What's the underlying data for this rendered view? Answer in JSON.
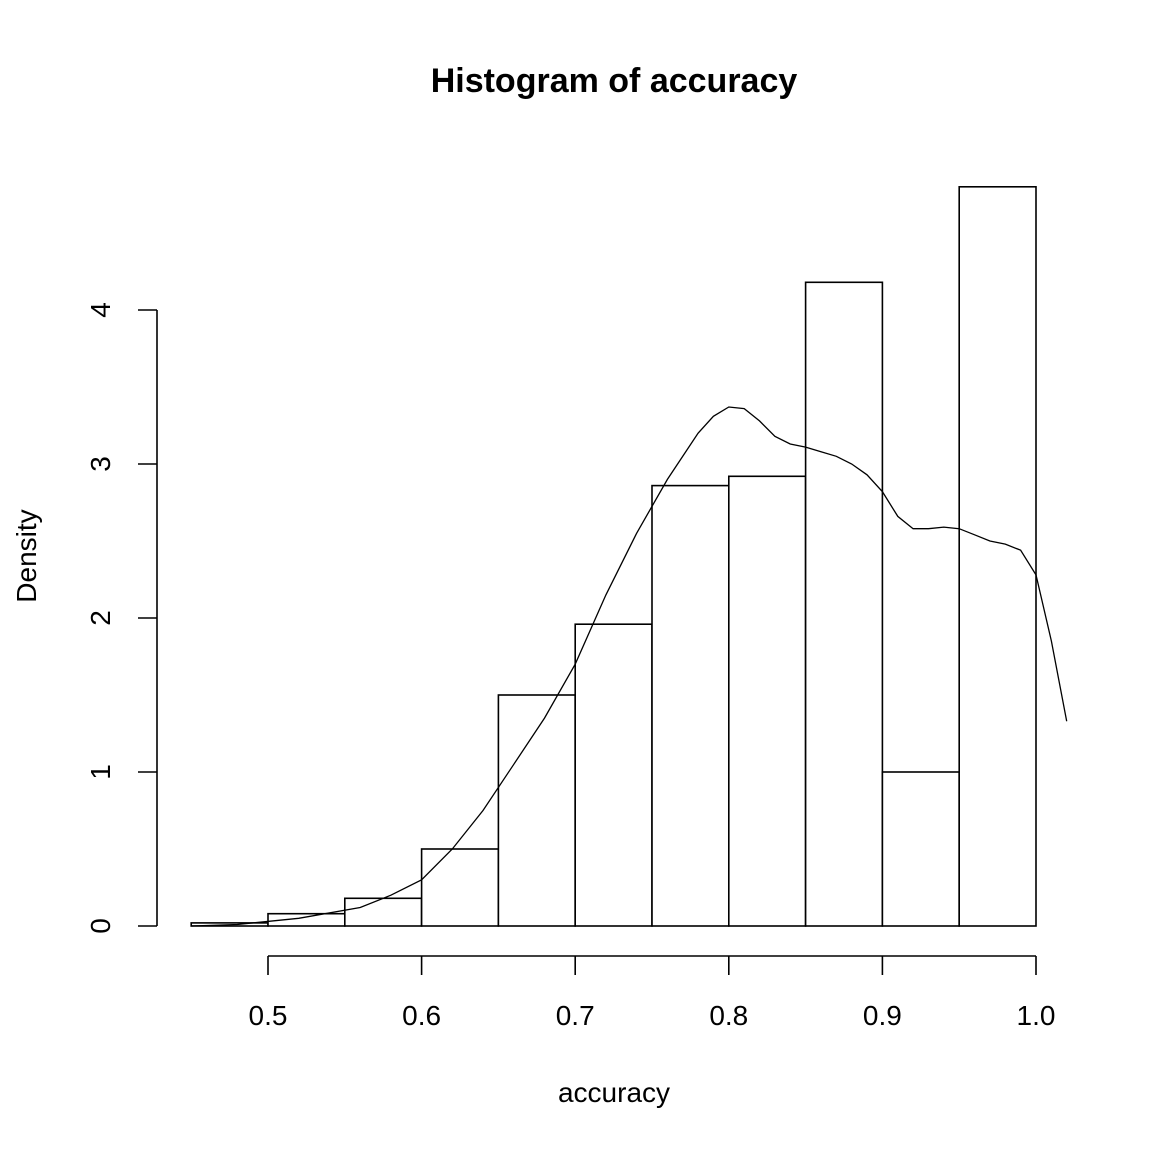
{
  "chart_data": {
    "type": "bar",
    "title": "Histogram of accuracy",
    "xlabel": "accuracy",
    "ylabel": "Density",
    "bins": [
      {
        "from": 0.45,
        "to": 0.5,
        "density": 0.02
      },
      {
        "from": 0.5,
        "to": 0.55,
        "density": 0.08
      },
      {
        "from": 0.55,
        "to": 0.6,
        "density": 0.18
      },
      {
        "from": 0.6,
        "to": 0.65,
        "density": 0.5
      },
      {
        "from": 0.65,
        "to": 0.7,
        "density": 1.5
      },
      {
        "from": 0.7,
        "to": 0.75,
        "density": 1.96
      },
      {
        "from": 0.75,
        "to": 0.8,
        "density": 2.86
      },
      {
        "from": 0.8,
        "to": 0.85,
        "density": 2.92
      },
      {
        "from": 0.85,
        "to": 0.9,
        "density": 4.18
      },
      {
        "from": 0.9,
        "to": 0.95,
        "density": 1.0
      },
      {
        "from": 0.95,
        "to": 1.0,
        "density": 4.8
      }
    ],
    "density_curve": {
      "x": [
        0.45,
        0.48,
        0.52,
        0.56,
        0.58,
        0.6,
        0.62,
        0.64,
        0.66,
        0.68,
        0.7,
        0.72,
        0.74,
        0.76,
        0.78,
        0.79,
        0.8,
        0.81,
        0.82,
        0.83,
        0.84,
        0.85,
        0.86,
        0.87,
        0.88,
        0.89,
        0.9,
        0.91,
        0.92,
        0.93,
        0.94,
        0.95,
        0.96,
        0.97,
        0.98,
        0.99,
        1.0,
        1.01,
        1.02
      ],
      "y": [
        0.0,
        0.01,
        0.05,
        0.12,
        0.2,
        0.3,
        0.5,
        0.75,
        1.05,
        1.35,
        1.7,
        2.15,
        2.55,
        2.9,
        3.2,
        3.31,
        3.37,
        3.36,
        3.28,
        3.18,
        3.13,
        3.11,
        3.08,
        3.05,
        3.0,
        2.93,
        2.82,
        2.66,
        2.58,
        2.58,
        2.59,
        2.58,
        2.54,
        2.5,
        2.48,
        2.44,
        2.28,
        1.85,
        1.33
      ]
    },
    "x_ticks": [
      0.5,
      0.6,
      0.7,
      0.8,
      0.9,
      1.0
    ],
    "x_tick_labels": [
      "0.5",
      "0.6",
      "0.7",
      "0.8",
      "0.9",
      "1.0"
    ],
    "y_ticks": [
      0,
      1,
      2,
      3,
      4
    ],
    "y_tick_labels": [
      "0",
      "1",
      "2",
      "3",
      "4"
    ],
    "xlim": [
      0.45,
      1.02
    ],
    "ylim": [
      0,
      4.8
    ],
    "grid": false,
    "colors": {
      "line": "#000000",
      "fill": "#ffffff",
      "background": "#ffffff"
    }
  }
}
